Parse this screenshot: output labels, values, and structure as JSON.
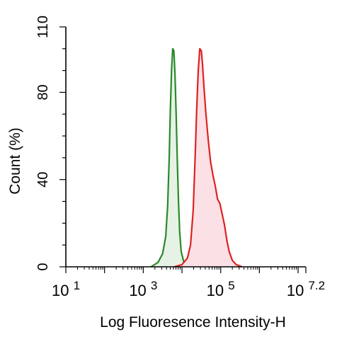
{
  "chart_data": {
    "type": "area",
    "xlabel": "Log Fluoresence Intensity-H",
    "ylabel": "Count  (%)",
    "x_scale": "log10",
    "xlim": [
      1,
      7.2
    ],
    "ylim": [
      0,
      110
    ],
    "x_ticks": [
      {
        "value": 1,
        "base": "10",
        "exp": "1"
      },
      {
        "value": 3,
        "base": "10",
        "exp": "3"
      },
      {
        "value": 5,
        "base": "10",
        "exp": "5"
      },
      {
        "value": 7.2,
        "base": "10",
        "exp": "7.2"
      }
    ],
    "y_ticks": [
      {
        "value": 0,
        "label": "0"
      },
      {
        "value": 40,
        "label": "40"
      },
      {
        "value": 80,
        "label": "80"
      },
      {
        "value": 110,
        "label": "110"
      }
    ],
    "grid": false,
    "legend": "none",
    "series": [
      {
        "color": "#2a8a2a",
        "fill": "#e6f2e6",
        "points": [
          [
            3.2,
            0
          ],
          [
            3.38,
            2
          ],
          [
            3.5,
            6
          ],
          [
            3.58,
            14
          ],
          [
            3.63,
            28
          ],
          [
            3.67,
            50
          ],
          [
            3.7,
            72
          ],
          [
            3.73,
            90
          ],
          [
            3.76,
            100
          ],
          [
            3.79,
            99
          ],
          [
            3.82,
            88
          ],
          [
            3.85,
            70
          ],
          [
            3.88,
            48
          ],
          [
            3.91,
            30
          ],
          [
            3.94,
            16
          ],
          [
            3.98,
            7
          ],
          [
            4.05,
            2
          ],
          [
            4.15,
            0
          ]
        ]
      },
      {
        "color": "#dd2222",
        "fill": "#fbe1e6",
        "points": [
          [
            3.8,
            0
          ],
          [
            4.0,
            1
          ],
          [
            4.14,
            4
          ],
          [
            4.22,
            10
          ],
          [
            4.29,
            26
          ],
          [
            4.34,
            50
          ],
          [
            4.38,
            72
          ],
          [
            4.42,
            90
          ],
          [
            4.46,
            100
          ],
          [
            4.5,
            99
          ],
          [
            4.53,
            93
          ],
          [
            4.57,
            82
          ],
          [
            4.62,
            70
          ],
          [
            4.68,
            58
          ],
          [
            4.74,
            48
          ],
          [
            4.8,
            42
          ],
          [
            4.86,
            37
          ],
          [
            4.92,
            31
          ],
          [
            4.98,
            29
          ],
          [
            5.04,
            24
          ],
          [
            5.1,
            19
          ],
          [
            5.16,
            12
          ],
          [
            5.22,
            7
          ],
          [
            5.3,
            3
          ],
          [
            5.4,
            1
          ],
          [
            5.55,
            0
          ]
        ]
      }
    ]
  }
}
